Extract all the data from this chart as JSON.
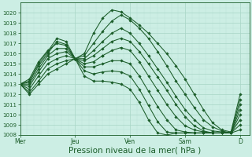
{
  "bg_color": "#cceee4",
  "grid_color_major": "#a8d5c5",
  "grid_color_minor": "#bce3d8",
  "line_color": "#1a5c28",
  "ylim": [
    1008,
    1021
  ],
  "yticks": [
    1008,
    1009,
    1010,
    1011,
    1012,
    1013,
    1014,
    1015,
    1016,
    1017,
    1018,
    1019,
    1020
  ],
  "xlabel": "Pression niveau de la mer( hPa )",
  "xlabel_fontsize": 7.5,
  "xtick_labels": [
    "Mer",
    "Jeu",
    "Ven",
    "Sam",
    "D"
  ],
  "xtick_positions": [
    0,
    24,
    48,
    72,
    96
  ],
  "xlim": [
    0,
    100
  ],
  "series": [
    {
      "points": [
        [
          0,
          1013.0
        ],
        [
          4,
          1013.5
        ],
        [
          8,
          1015.2
        ],
        [
          12,
          1016.3
        ],
        [
          16,
          1017.0
        ],
        [
          20,
          1016.8
        ],
        [
          24,
          1015.5
        ],
        [
          28,
          1016.0
        ],
        [
          32,
          1018.0
        ],
        [
          36,
          1019.5
        ],
        [
          40,
          1020.3
        ],
        [
          44,
          1020.1
        ],
        [
          48,
          1019.5
        ],
        [
          52,
          1018.8
        ],
        [
          56,
          1018.0
        ],
        [
          60,
          1017.0
        ],
        [
          64,
          1016.0
        ],
        [
          68,
          1014.8
        ],
        [
          72,
          1013.5
        ],
        [
          76,
          1012.0
        ],
        [
          80,
          1010.5
        ],
        [
          84,
          1009.2
        ],
        [
          88,
          1008.5
        ],
        [
          92,
          1008.3
        ],
        [
          96,
          1012.0
        ]
      ]
    },
    {
      "points": [
        [
          0,
          1013.0
        ],
        [
          4,
          1013.3
        ],
        [
          8,
          1015.0
        ],
        [
          12,
          1016.2
        ],
        [
          16,
          1017.5
        ],
        [
          20,
          1017.2
        ],
        [
          24,
          1015.5
        ],
        [
          28,
          1015.8
        ],
        [
          32,
          1017.0
        ],
        [
          36,
          1018.2
        ],
        [
          40,
          1019.2
        ],
        [
          44,
          1019.8
        ],
        [
          48,
          1019.3
        ],
        [
          52,
          1018.5
        ],
        [
          56,
          1017.5
        ],
        [
          60,
          1016.2
        ],
        [
          64,
          1014.8
        ],
        [
          68,
          1013.3
        ],
        [
          72,
          1012.0
        ],
        [
          76,
          1010.7
        ],
        [
          80,
          1009.5
        ],
        [
          84,
          1008.8
        ],
        [
          88,
          1008.4
        ],
        [
          92,
          1008.2
        ],
        [
          96,
          1011.5
        ]
      ]
    },
    {
      "points": [
        [
          0,
          1013.0
        ],
        [
          4,
          1013.2
        ],
        [
          8,
          1014.8
        ],
        [
          12,
          1016.0
        ],
        [
          16,
          1017.2
        ],
        [
          20,
          1016.9
        ],
        [
          24,
          1015.5
        ],
        [
          28,
          1015.5
        ],
        [
          32,
          1016.3
        ],
        [
          36,
          1017.2
        ],
        [
          40,
          1018.0
        ],
        [
          44,
          1018.5
        ],
        [
          48,
          1018.0
        ],
        [
          52,
          1017.0
        ],
        [
          56,
          1015.8
        ],
        [
          60,
          1014.5
        ],
        [
          64,
          1013.2
        ],
        [
          68,
          1011.8
        ],
        [
          72,
          1010.5
        ],
        [
          76,
          1009.5
        ],
        [
          80,
          1008.7
        ],
        [
          84,
          1008.4
        ],
        [
          88,
          1008.3
        ],
        [
          92,
          1008.2
        ],
        [
          96,
          1011.0
        ]
      ]
    },
    {
      "points": [
        [
          0,
          1013.0
        ],
        [
          4,
          1013.0
        ],
        [
          8,
          1014.5
        ],
        [
          12,
          1015.8
        ],
        [
          16,
          1016.5
        ],
        [
          20,
          1016.5
        ],
        [
          24,
          1015.5
        ],
        [
          28,
          1015.3
        ],
        [
          32,
          1015.8
        ],
        [
          36,
          1016.5
        ],
        [
          40,
          1017.2
        ],
        [
          44,
          1017.5
        ],
        [
          48,
          1017.2
        ],
        [
          52,
          1016.2
        ],
        [
          56,
          1015.0
        ],
        [
          60,
          1013.7
        ],
        [
          64,
          1012.4
        ],
        [
          68,
          1011.0
        ],
        [
          72,
          1009.8
        ],
        [
          76,
          1008.9
        ],
        [
          80,
          1008.4
        ],
        [
          84,
          1008.2
        ],
        [
          88,
          1008.2
        ],
        [
          92,
          1008.2
        ],
        [
          96,
          1010.5
        ]
      ]
    },
    {
      "points": [
        [
          0,
          1013.0
        ],
        [
          4,
          1012.8
        ],
        [
          8,
          1014.2
        ],
        [
          12,
          1015.5
        ],
        [
          16,
          1016.0
        ],
        [
          20,
          1016.2
        ],
        [
          24,
          1015.5
        ],
        [
          28,
          1015.0
        ],
        [
          32,
          1015.2
        ],
        [
          36,
          1015.8
        ],
        [
          36,
          1015.8
        ],
        [
          40,
          1016.3
        ],
        [
          44,
          1016.6
        ],
        [
          48,
          1016.3
        ],
        [
          52,
          1015.2
        ],
        [
          56,
          1013.8
        ],
        [
          60,
          1012.4
        ],
        [
          64,
          1011.0
        ],
        [
          68,
          1009.8
        ],
        [
          72,
          1008.9
        ],
        [
          76,
          1008.5
        ],
        [
          80,
          1008.3
        ],
        [
          84,
          1008.2
        ],
        [
          88,
          1008.2
        ],
        [
          92,
          1008.2
        ],
        [
          96,
          1010.0
        ]
      ]
    },
    {
      "points": [
        [
          0,
          1013.0
        ],
        [
          4,
          1012.5
        ],
        [
          8,
          1013.8
        ],
        [
          12,
          1015.0
        ],
        [
          16,
          1015.5
        ],
        [
          20,
          1015.8
        ],
        [
          24,
          1015.5
        ],
        [
          28,
          1014.7
        ],
        [
          32,
          1014.7
        ],
        [
          36,
          1015.0
        ],
        [
          40,
          1015.3
        ],
        [
          44,
          1015.3
        ],
        [
          48,
          1015.0
        ],
        [
          52,
          1013.8
        ],
        [
          56,
          1012.3
        ],
        [
          60,
          1010.8
        ],
        [
          64,
          1009.5
        ],
        [
          68,
          1008.5
        ],
        [
          72,
          1008.3
        ],
        [
          76,
          1008.2
        ],
        [
          80,
          1008.2
        ],
        [
          84,
          1008.2
        ],
        [
          88,
          1008.2
        ],
        [
          92,
          1008.2
        ],
        [
          96,
          1009.5
        ]
      ]
    },
    {
      "points": [
        [
          0,
          1013.0
        ],
        [
          4,
          1012.2
        ],
        [
          8,
          1013.3
        ],
        [
          12,
          1014.5
        ],
        [
          16,
          1015.0
        ],
        [
          20,
          1015.3
        ],
        [
          24,
          1015.5
        ],
        [
          28,
          1014.3
        ],
        [
          32,
          1014.0
        ],
        [
          36,
          1014.2
        ],
        [
          40,
          1014.3
        ],
        [
          44,
          1014.2
        ],
        [
          48,
          1013.8
        ],
        [
          52,
          1012.5
        ],
        [
          56,
          1010.9
        ],
        [
          60,
          1009.3
        ],
        [
          64,
          1008.3
        ],
        [
          68,
          1008.2
        ],
        [
          72,
          1008.2
        ],
        [
          76,
          1008.2
        ],
        [
          80,
          1008.2
        ],
        [
          84,
          1008.2
        ],
        [
          88,
          1008.2
        ],
        [
          92,
          1008.2
        ],
        [
          96,
          1009.0
        ]
      ]
    },
    {
      "points": [
        [
          0,
          1013.0
        ],
        [
          4,
          1012.0
        ],
        [
          8,
          1013.0
        ],
        [
          12,
          1014.0
        ],
        [
          16,
          1014.5
        ],
        [
          20,
          1015.0
        ],
        [
          24,
          1015.5
        ],
        [
          28,
          1013.8
        ],
        [
          32,
          1013.3
        ],
        [
          36,
          1013.3
        ],
        [
          40,
          1013.2
        ],
        [
          44,
          1013.0
        ],
        [
          48,
          1012.5
        ],
        [
          52,
          1011.2
        ],
        [
          56,
          1009.5
        ],
        [
          60,
          1008.2
        ],
        [
          64,
          1008.0
        ],
        [
          68,
          1008.2
        ],
        [
          72,
          1008.2
        ],
        [
          76,
          1008.2
        ],
        [
          80,
          1008.2
        ],
        [
          84,
          1008.2
        ],
        [
          88,
          1008.2
        ],
        [
          92,
          1008.2
        ],
        [
          96,
          1008.5
        ]
      ]
    }
  ]
}
